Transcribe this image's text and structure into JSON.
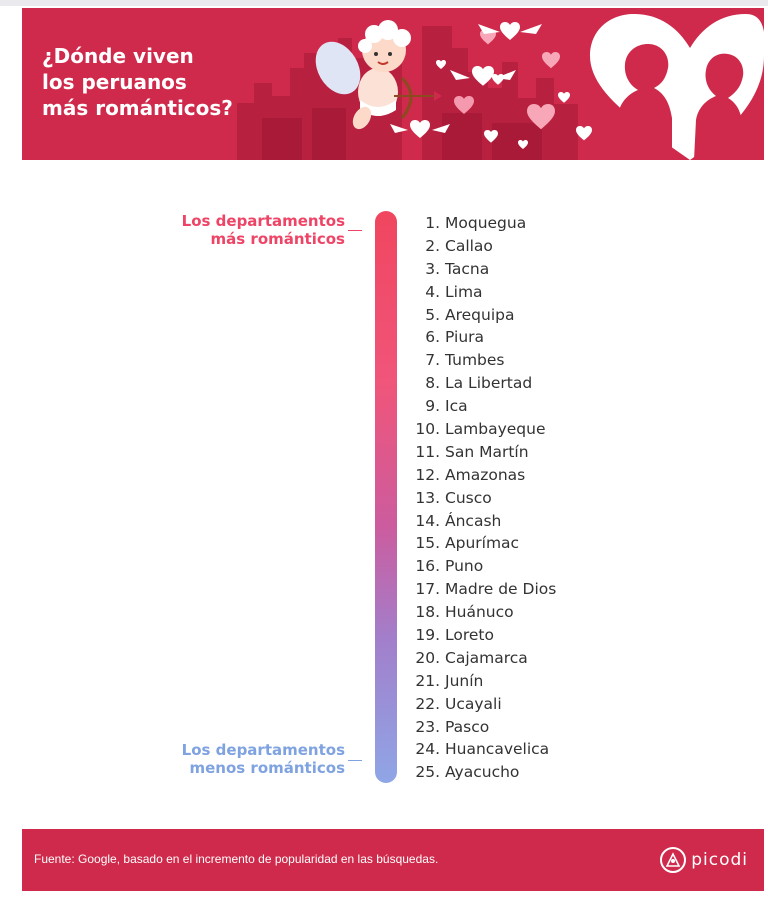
{
  "header": {
    "title_lines": [
      "¿Dónde viven",
      "los peruanos",
      "más románticos?"
    ],
    "bg_color": "#cf2a4b",
    "illustration_icons": [
      "cupid-icon",
      "city-skyline-icon",
      "hearts-icon",
      "couple-silhouette-icon"
    ]
  },
  "legend": {
    "top": [
      "Los departamentos",
      "más románticos"
    ],
    "bottom": [
      "Los departamentos",
      "menos románticos"
    ],
    "top_color": "#ee4466",
    "bottom_color": "#7fa2e0"
  },
  "ranking": [
    {
      "rank": "1.",
      "name": "Moquegua"
    },
    {
      "rank": "2.",
      "name": "Callao"
    },
    {
      "rank": "3.",
      "name": "Tacna"
    },
    {
      "rank": "4.",
      "name": "Lima"
    },
    {
      "rank": "5.",
      "name": "Arequipa"
    },
    {
      "rank": "6.",
      "name": "Piura"
    },
    {
      "rank": "7.",
      "name": "Tumbes"
    },
    {
      "rank": "8.",
      "name": "La Libertad"
    },
    {
      "rank": "9.",
      "name": "Ica"
    },
    {
      "rank": "10.",
      "name": "Lambayeque"
    },
    {
      "rank": "11.",
      "name": "San Martín"
    },
    {
      "rank": "12.",
      "name": "Amazonas"
    },
    {
      "rank": "13.",
      "name": "Cusco"
    },
    {
      "rank": "14.",
      "name": "Áncash"
    },
    {
      "rank": "15.",
      "name": "Apurímac"
    },
    {
      "rank": "16.",
      "name": "Puno"
    },
    {
      "rank": "17.",
      "name": "Madre de Dios"
    },
    {
      "rank": "18.",
      "name": "Huánuco"
    },
    {
      "rank": "19.",
      "name": "Loreto"
    },
    {
      "rank": "20.",
      "name": "Cajamarca"
    },
    {
      "rank": "21.",
      "name": "Junín"
    },
    {
      "rank": "22.",
      "name": "Ucayali"
    },
    {
      "rank": "23.",
      "name": "Pasco"
    },
    {
      "rank": "24.",
      "name": "Huancavelica"
    },
    {
      "rank": "25.",
      "name": "Ayacucho"
    }
  ],
  "footer": {
    "source": "Fuente: Google, basado en el incremento de popularidad en las búsquedas.",
    "brand": "picodi",
    "brand_icon": "picodi-logo-icon"
  }
}
